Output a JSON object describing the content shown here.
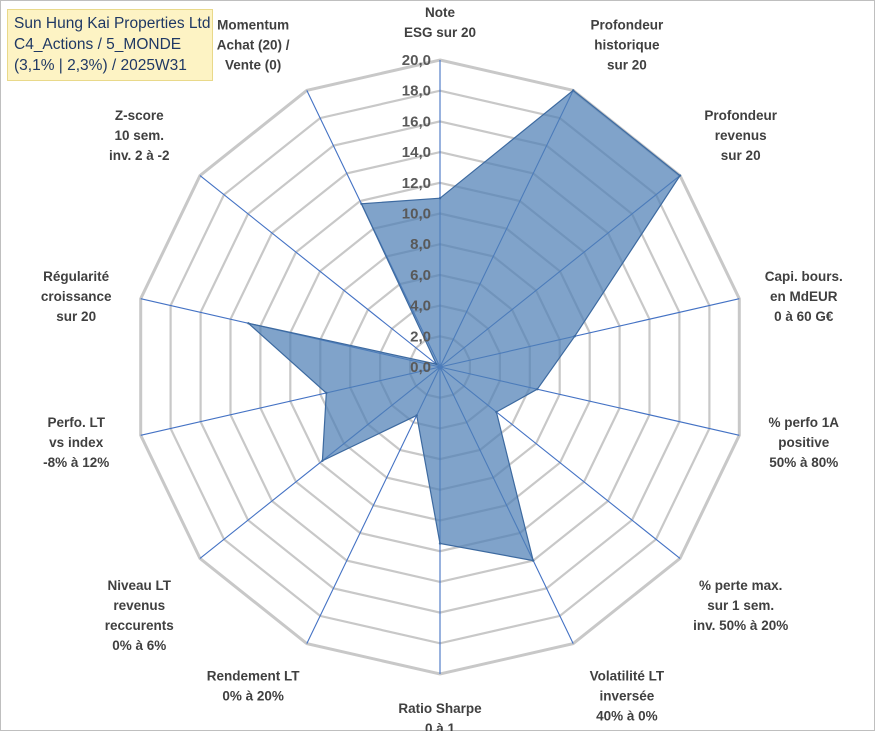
{
  "title_box": {
    "line1": "Sun Hung Kai Properties Ltd",
    "line2": "C4_Actions / 5_MONDE",
    "line3": "(3,1% | 2,3%) / 2025W31"
  },
  "colors": {
    "fill": "#4f7fb5",
    "spoke": "#4472c4",
    "grid": "#c8c8c8",
    "title_bg": "#fdf3c4"
  },
  "chart_data": {
    "type": "radar",
    "rmin": 0,
    "rmax": 20,
    "tick_step": 2,
    "ticks": [
      "0,0",
      "2,0",
      "4,0",
      "6,0",
      "8,0",
      "10,0",
      "12,0",
      "14,0",
      "16,0",
      "18,0",
      "20,0"
    ],
    "axes": [
      {
        "label": [
          "Note",
          "ESG sur 20"
        ],
        "value": 11.0
      },
      {
        "label": [
          "Profondeur",
          "historique",
          "sur 20"
        ],
        "value": 20.0
      },
      {
        "label": [
          "Profondeur",
          "revenus",
          "sur 20"
        ],
        "value": 20.0
      },
      {
        "label": [
          "Capi. bours.",
          "en MdEUR",
          "0 à 60 G€"
        ],
        "value": 9.0
      },
      {
        "label": [
          "% perfo 1A",
          "positive",
          "50% à 80%"
        ],
        "value": 6.5
      },
      {
        "label": [
          "% perte max.",
          "sur 1 sem.",
          "inv. 50% à 20%"
        ],
        "value": 4.7
      },
      {
        "label": [
          "Volatilité LT",
          "inversée",
          "40% à 0%"
        ],
        "value": 14.0
      },
      {
        "label": [
          "Ratio Sharpe",
          "0 à 1"
        ],
        "value": 11.5
      },
      {
        "label": [
          "Rendement LT",
          "0% à 20%"
        ],
        "value": 3.5
      },
      {
        "label": [
          "Niveau LT",
          "revenus",
          "reccurents",
          "0% à 6%"
        ],
        "value": 9.8
      },
      {
        "label": [
          "Perfo. LT",
          "vs index",
          "-8% à 12%"
        ],
        "value": 7.6
      },
      {
        "label": [
          "Régularité",
          "croissance",
          "sur 20"
        ],
        "value": 12.8
      },
      {
        "label": [
          "Z-score",
          "10 sem.",
          "inv. 2 à -2"
        ],
        "value": 0.3
      },
      {
        "label": [
          "Momentum",
          "Achat (20) /",
          "Vente (0)"
        ],
        "value": 11.8
      }
    ]
  }
}
